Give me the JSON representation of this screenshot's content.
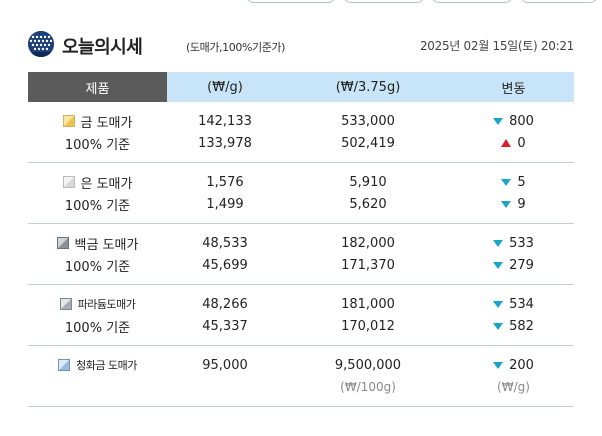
{
  "header": {
    "title": "오늘의시세",
    "subtitle": "(도매가,100%기준가)",
    "datetime": "2025년 02월 15일(토) 20:21"
  },
  "columns": [
    "제품",
    "(₩/g)",
    "(₩/3.75g)",
    "변동"
  ],
  "colors": {
    "header_dark": "#5b5b5b",
    "header_light": "#c8e4f8",
    "down": "#1aa5c8",
    "up": "#d8202a"
  },
  "groups": [
    {
      "icon": "gold-bar-icon",
      "wholesale": {
        "name": "금 도매가",
        "per_g": "142,133",
        "per_don": "533,000",
        "change": "800",
        "dir": "down"
      },
      "pure": {
        "name": "100% 기준",
        "per_g": "133,978",
        "per_don": "502,419",
        "change": "0",
        "dir": "up"
      }
    },
    {
      "icon": "silver-bar-icon",
      "wholesale": {
        "name": "은 도매가",
        "per_g": "1,576",
        "per_don": "5,910",
        "change": "5",
        "dir": "down"
      },
      "pure": {
        "name": "100% 기준",
        "per_g": "1,499",
        "per_don": "5,620",
        "change": "9",
        "dir": "down"
      }
    },
    {
      "icon": "platinum-bar-icon",
      "wholesale": {
        "name": "백금 도매가",
        "per_g": "48,533",
        "per_don": "182,000",
        "change": "533",
        "dir": "down"
      },
      "pure": {
        "name": "100% 기준",
        "per_g": "45,699",
        "per_don": "171,370",
        "change": "279",
        "dir": "down"
      }
    },
    {
      "icon": "palladium-bar-icon",
      "wholesale": {
        "name": "파라듐도매가",
        "per_g": "48,266",
        "per_don": "181,000",
        "change": "534",
        "dir": "down"
      },
      "pure": {
        "name": "100% 기준",
        "per_g": "45,337",
        "per_don": "170,012",
        "change": "582",
        "dir": "down"
      }
    },
    {
      "icon": "cheonghwa-gold-icon",
      "wholesale": {
        "name": "청화금 도매가",
        "per_g": "95,000",
        "per_don": "9,500,000",
        "change": "200",
        "dir": "down"
      },
      "units": {
        "per_don": "(₩/100g)",
        "change": "(₩/g)"
      }
    }
  ]
}
